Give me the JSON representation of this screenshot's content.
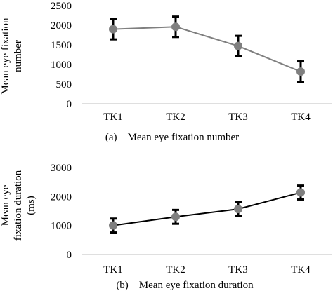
{
  "chart_data": [
    {
      "type": "line",
      "categories": [
        "TK1",
        "TK2",
        "TK3",
        "TK4"
      ],
      "values": [
        1900,
        1960,
        1470,
        820
      ],
      "error": [
        260,
        260,
        260,
        260
      ],
      "ylabel_lines": [
        "Mean eye fixation",
        "number"
      ],
      "yticks": [
        0,
        500,
        1000,
        1500,
        2000,
        2500
      ],
      "ylim": [
        0,
        2500
      ],
      "caption": "(a) Mean eye fixation number",
      "line_color": "#7f7f7f",
      "marker_color": "#7f7f7f",
      "errorbar_color": "#000000",
      "grid": false,
      "legend": "none"
    },
    {
      "type": "line",
      "categories": [
        "TK1",
        "TK2",
        "TK3",
        "TK4"
      ],
      "values": [
        1000,
        1300,
        1570,
        2140
      ],
      "error": [
        240,
        240,
        240,
        240
      ],
      "ylabel_lines": [
        "Mean  eye",
        "fixation duration",
        "(ms)"
      ],
      "yticks": [
        0,
        1000,
        2000,
        3000
      ],
      "ylim": [
        0,
        3000
      ],
      "caption": "(b) Mean eye fixation duration",
      "line_color": "#000000",
      "marker_color": "#7f7f7f",
      "errorbar_color": "#000000",
      "grid": false,
      "legend": "none"
    }
  ]
}
